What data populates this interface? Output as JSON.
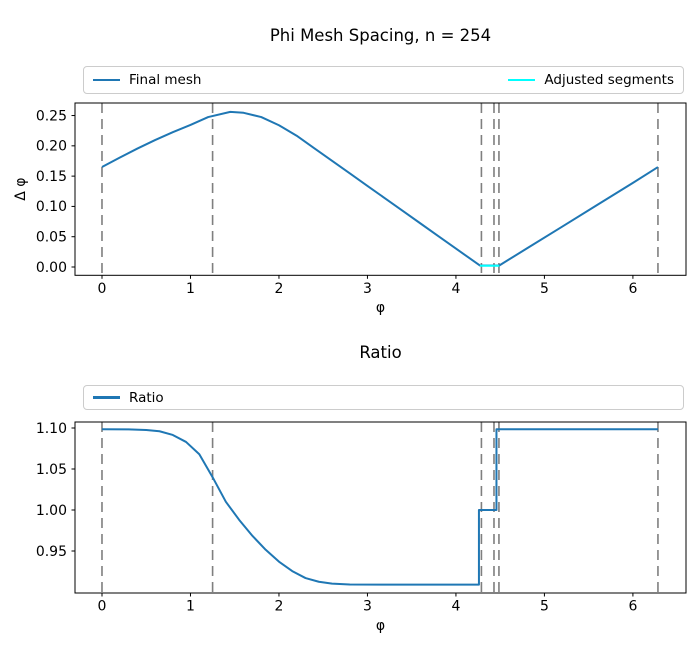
{
  "figure": {
    "background": "#ffffff",
    "spine_color": "#000000",
    "tick_color": "#000000"
  },
  "chart_data": [
    {
      "type": "line",
      "title": "Phi Mesh Spacing, n = 254",
      "xlabel": "φ",
      "ylabel": "Δ φ",
      "xlim": [
        -0.305,
        6.6
      ],
      "ylim": [
        -0.0137,
        0.2707
      ],
      "grid": false,
      "xticks": [
        0,
        1,
        2,
        3,
        4,
        5,
        6
      ],
      "xtick_labels": [
        "0",
        "1",
        "2",
        "3",
        "4",
        "5",
        "6"
      ],
      "yticks": [
        0.0,
        0.05,
        0.1,
        0.15,
        0.2,
        0.25
      ],
      "ytick_labels": [
        "0.00",
        "0.05",
        "0.10",
        "0.15",
        "0.20",
        "0.25"
      ],
      "vlines": {
        "x": [
          0,
          1.25,
          4.288,
          4.43,
          4.486,
          6.283
        ],
        "color": "#7f7f7f",
        "style": "dashed"
      },
      "legend": {
        "position": "top",
        "mode": "expand",
        "entries": [
          "Final mesh",
          "Adjusted segments"
        ]
      },
      "series": [
        {
          "name": "Final mesh",
          "color": "#1f77b4",
          "points": [
            [
              0,
              0.165
            ],
            [
              0.2,
              0.1805
            ],
            [
              0.4,
              0.1955
            ],
            [
              0.6,
              0.2095
            ],
            [
              0.8,
              0.2225
            ],
            [
              1.0,
              0.2345
            ],
            [
              1.2,
              0.2475
            ],
            [
              1.45,
              0.256
            ],
            [
              1.6,
              0.2545
            ],
            [
              1.8,
              0.2475
            ],
            [
              2.0,
              0.234
            ],
            [
              2.2,
              0.2167
            ],
            [
              2.4,
              0.196
            ],
            [
              2.6,
              0.1753
            ],
            [
              2.8,
              0.1546
            ],
            [
              3.0,
              0.1339
            ],
            [
              3.2,
              0.1132
            ],
            [
              3.4,
              0.0925
            ],
            [
              3.6,
              0.0718
            ],
            [
              3.8,
              0.0511
            ],
            [
              4.0,
              0.0304
            ],
            [
              4.15,
              0.0149
            ],
            [
              4.27,
              0.0025
            ],
            [
              4.49,
              0.0025
            ],
            [
              4.8,
              0.0305
            ],
            [
              5.2,
              0.0665
            ],
            [
              5.6,
              0.1027
            ],
            [
              6.0,
              0.1389
            ],
            [
              6.283,
              0.165
            ]
          ]
        },
        {
          "name": "Adjusted segments",
          "color": "#00ffff",
          "points": [
            [
              4.27,
              0.002
            ],
            [
              4.49,
              0.002
            ]
          ]
        }
      ]
    },
    {
      "type": "line",
      "title": "Ratio",
      "xlabel": "φ",
      "ylabel": "",
      "xlim": [
        -0.305,
        6.6
      ],
      "ylim": [
        0.8988,
        1.1073
      ],
      "grid": false,
      "xticks": [
        0,
        1,
        2,
        3,
        4,
        5,
        6
      ],
      "xtick_labels": [
        "0",
        "1",
        "2",
        "3",
        "4",
        "5",
        "6"
      ],
      "yticks": [
        0.95,
        1.0,
        1.05,
        1.1
      ],
      "ytick_labels": [
        "0.95",
        "1.00",
        "1.05",
        "1.10"
      ],
      "vlines": {
        "x": [
          0,
          1.25,
          4.288,
          4.43,
          4.486,
          6.283
        ],
        "color": "#7f7f7f",
        "style": "dashed"
      },
      "legend": {
        "position": "top",
        "mode": "expand",
        "entries": [
          "Ratio"
        ]
      },
      "series": [
        {
          "name": "Ratio",
          "color": "#1f77b4",
          "points": [
            [
              0,
              1.0985
            ],
            [
              0.3,
              1.0983
            ],
            [
              0.5,
              1.0975
            ],
            [
              0.65,
              1.096
            ],
            [
              0.8,
              1.0915
            ],
            [
              0.95,
              1.083
            ],
            [
              1.1,
              1.068
            ],
            [
              1.25,
              1.04
            ],
            [
              1.4,
              1.01
            ],
            [
              1.55,
              0.988
            ],
            [
              1.7,
              0.9685
            ],
            [
              1.85,
              0.9515
            ],
            [
              2.0,
              0.937
            ],
            [
              2.15,
              0.9255
            ],
            [
              2.3,
              0.917
            ],
            [
              2.45,
              0.9125
            ],
            [
              2.6,
              0.9102
            ],
            [
              2.8,
              0.9092
            ],
            [
              3.2,
              0.909
            ],
            [
              4.26,
              0.909
            ],
            [
              4.26,
              1.0
            ],
            [
              4.458,
              1.0
            ],
            [
              4.458,
              1.0985
            ],
            [
              6.283,
              1.0985
            ]
          ]
        }
      ]
    }
  ]
}
